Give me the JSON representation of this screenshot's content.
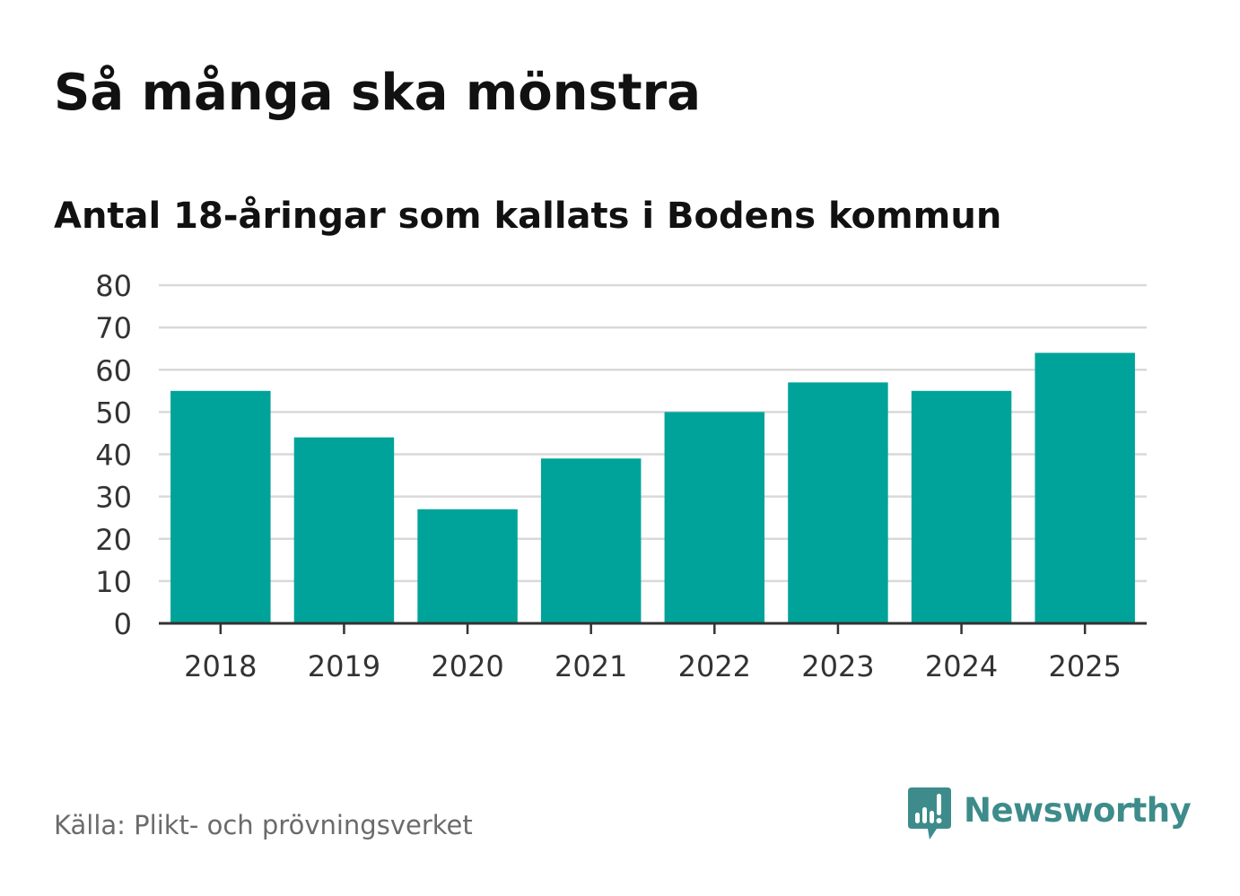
{
  "title": "Så många ska mönstra",
  "subtitle": "Antal 18-åringar som kallats i Bodens kommun",
  "source": "Källa: Plikt- och prövningsverket",
  "brand": {
    "name": "Newsworthy",
    "icon": "newsworthy-logo-icon",
    "color": "#3d8c8b"
  },
  "colors": {
    "bar": "#00a39a",
    "grid": "#d9d9d9",
    "axis": "#333333",
    "tick_text": "#333333"
  },
  "chart_data": {
    "type": "bar",
    "categories": [
      "2018",
      "2019",
      "2020",
      "2021",
      "2022",
      "2023",
      "2024",
      "2025"
    ],
    "values": [
      55,
      44,
      27,
      39,
      50,
      57,
      55,
      64
    ],
    "ylim": [
      0,
      80
    ],
    "yticks": [
      "0",
      "10",
      "20",
      "30",
      "40",
      "50",
      "60",
      "70",
      "80"
    ],
    "grid": true,
    "xlabel": "",
    "ylabel": ""
  }
}
